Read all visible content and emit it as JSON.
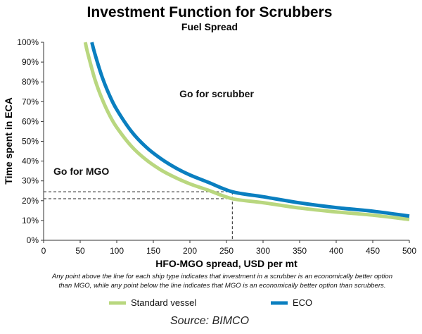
{
  "chart_data": {
    "type": "line",
    "title": "Investment Function for Scrubbers",
    "subtitle": "Fuel Spread",
    "xlabel": "HFO-MGO spread, USD per mt",
    "ylabel": "Time spent in ECA",
    "xlim": [
      0,
      500
    ],
    "ylim": [
      0,
      100
    ],
    "x_ticks": [
      "0",
      "50",
      "100",
      "150",
      "200",
      "250",
      "300",
      "350",
      "400",
      "450",
      "500"
    ],
    "y_ticks": [
      "0%",
      "10%",
      "20%",
      "30%",
      "40%",
      "50%",
      "60%",
      "70%",
      "80%",
      "90%",
      "100%"
    ],
    "series": [
      {
        "name": "Standard vessel",
        "color": "#b9d77f",
        "x": [
          57,
          60,
          70,
          80,
          90,
          100,
          120,
          140,
          160,
          180,
          200,
          225,
          258,
          300,
          350,
          400,
          450,
          500
        ],
        "y": [
          100,
          95,
          81.4,
          71.3,
          63.3,
          57,
          47.5,
          40.7,
          35.6,
          31.7,
          28.5,
          25.3,
          21,
          19,
          16.3,
          14.3,
          12.7,
          10.5
        ]
      },
      {
        "name": "ECO",
        "color": "#0a7fc0",
        "x": [
          66,
          70,
          80,
          90,
          100,
          120,
          140,
          160,
          180,
          200,
          225,
          258,
          300,
          350,
          400,
          450,
          500
        ],
        "y": [
          100,
          94.3,
          82.5,
          73.3,
          66,
          55,
          47.1,
          41.3,
          36.7,
          33,
          29.3,
          24.5,
          22,
          18.9,
          16.5,
          14.7,
          12.2
        ]
      }
    ],
    "reference_lines": [
      {
        "x": 258,
        "y": 24.5
      },
      {
        "x": 258,
        "y": 21
      }
    ],
    "annotations": {
      "above": "Go for scrubber",
      "below": "Go for MGO"
    },
    "note_line1": "Any point above the line for each ship type indicates that investment in a scrubber is an economically better option",
    "note_line2": "than MGO, while any point below the line indicates that MGO is an economically better option than scrubbers.",
    "legend": [
      "Standard vessel",
      "ECO"
    ],
    "source": "Source: BIMCO"
  }
}
